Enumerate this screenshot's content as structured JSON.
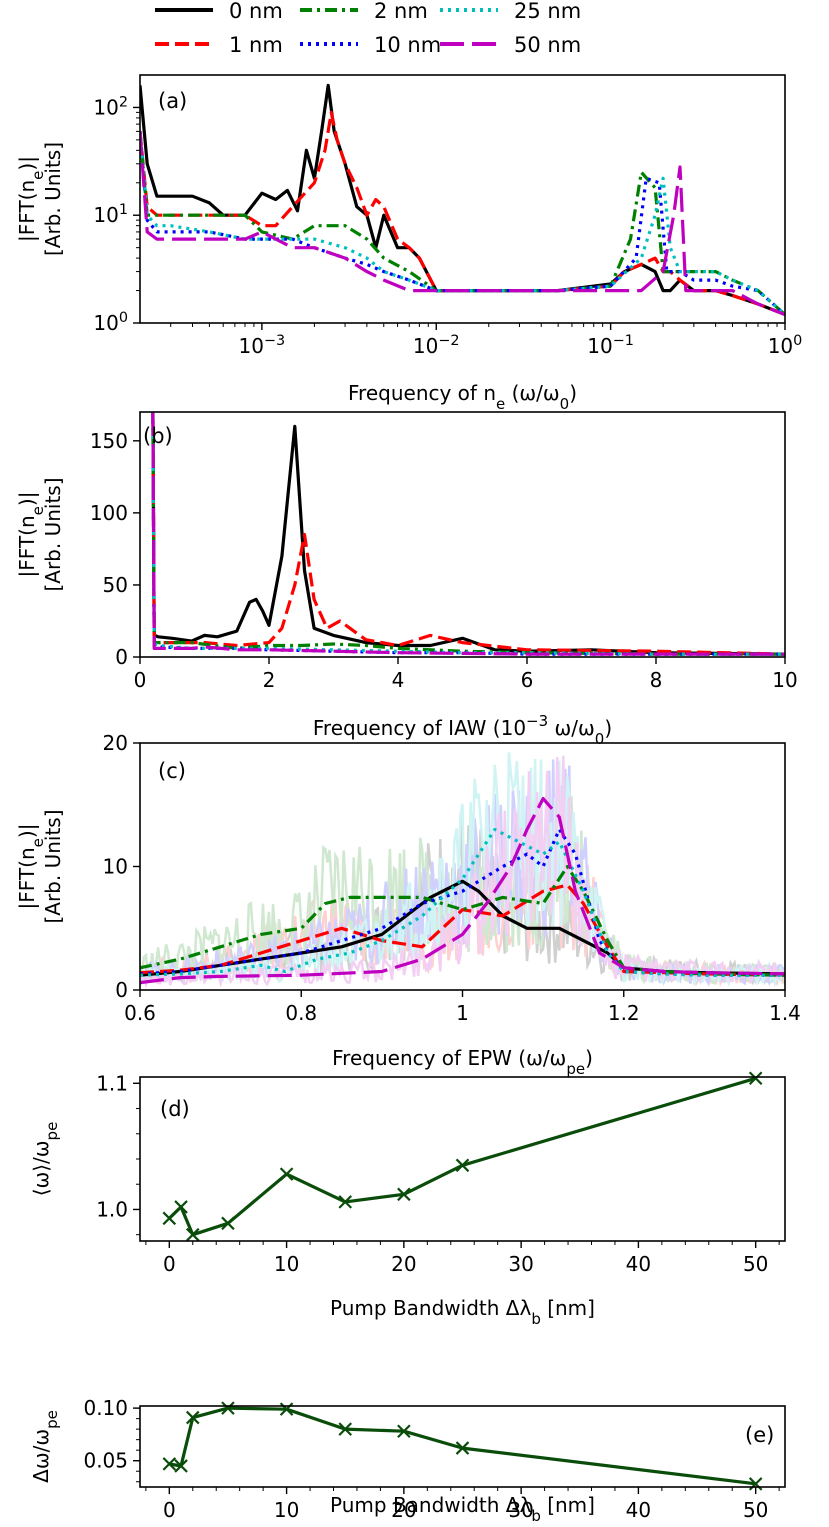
{
  "legend": [
    {
      "name": "0 nm",
      "color": "#000000",
      "dash": "solid"
    },
    {
      "name": "1 nm",
      "color": "#ff0000",
      "dash": "dashed"
    },
    {
      "name": "2 nm",
      "color": "#008000",
      "dash": "dashdot"
    },
    {
      "name": "10 nm",
      "color": "#0000ff",
      "dash": "dotted"
    },
    {
      "name": "25 nm",
      "color": "#00bfbf",
      "dash": "dotted"
    },
    {
      "name": "50 nm",
      "color": "#bf00bf",
      "dash": "longdash"
    }
  ],
  "chart_data": [
    {
      "panel": "(a)",
      "type": "line",
      "xscale": "log",
      "yscale": "log",
      "xlim": [
        0.0002,
        1.0
      ],
      "ylim": [
        1,
        200
      ],
      "xticks": [
        0.001,
        0.01,
        0.1,
        1
      ],
      "xtick_labels": [
        "10^-3",
        "10^-2",
        "10^-1",
        "10^0"
      ],
      "yticks": [
        1,
        10,
        100
      ],
      "ytick_labels": [
        "10^0",
        "10^1",
        "10^2"
      ],
      "xlabel": "Frequency of n_e (ω/ω_0)",
      "ylabel": "|FFT(n_e)| [Arb. Units]",
      "series": [
        {
          "name": "0 nm",
          "x": [
            0.0002,
            0.00022,
            0.00025,
            0.0003,
            0.0004,
            0.0005,
            0.0006,
            0.0008,
            0.001,
            0.0012,
            0.0014,
            0.0016,
            0.0018,
            0.002,
            0.0022,
            0.0024,
            0.0026,
            0.003,
            0.0035,
            0.004,
            0.0045,
            0.005,
            0.006,
            0.007,
            0.008,
            0.01,
            0.02,
            0.05,
            0.1,
            0.12,
            0.15,
            0.18,
            0.2,
            0.22,
            0.25,
            0.3,
            0.4,
            0.5,
            0.7,
            1.0
          ],
          "y": [
            160,
            30,
            15,
            15,
            15,
            13,
            10,
            10,
            16,
            14,
            17,
            11,
            40,
            22,
            60,
            160,
            60,
            30,
            12,
            10,
            5,
            10,
            5,
            5,
            4,
            2,
            2,
            2,
            2.3,
            3,
            3.5,
            3,
            2,
            2,
            2.5,
            2,
            2,
            1.8,
            1.5,
            1.2
          ]
        },
        {
          "name": "1 nm",
          "x": [
            0.0002,
            0.00022,
            0.00025,
            0.0003,
            0.0004,
            0.0005,
            0.0006,
            0.0008,
            0.001,
            0.0012,
            0.0015,
            0.002,
            0.0023,
            0.0025,
            0.0027,
            0.003,
            0.0035,
            0.004,
            0.0045,
            0.005,
            0.006,
            0.007,
            0.008,
            0.01,
            0.02,
            0.05,
            0.1,
            0.12,
            0.15,
            0.18,
            0.2,
            0.22,
            0.25,
            0.3,
            0.4,
            0.5,
            0.7,
            1.0
          ],
          "y": [
            60,
            12,
            10,
            10,
            10,
            10,
            10,
            10,
            8,
            8,
            12,
            20,
            40,
            90,
            50,
            30,
            18,
            10,
            14,
            12,
            6,
            5,
            4,
            2,
            2,
            2,
            2.2,
            3,
            3.5,
            4,
            3,
            3,
            2.5,
            2,
            2,
            1.8,
            1.5,
            1.2
          ]
        },
        {
          "name": "2 nm",
          "x": [
            0.0002,
            0.00022,
            0.00025,
            0.0003,
            0.0005,
            0.0008,
            0.001,
            0.0015,
            0.002,
            0.0025,
            0.003,
            0.004,
            0.005,
            0.007,
            0.01,
            0.02,
            0.05,
            0.1,
            0.13,
            0.15,
            0.18,
            0.2,
            0.25,
            0.3,
            0.4,
            0.5,
            0.7,
            1.0
          ],
          "y": [
            60,
            10,
            10,
            10,
            10,
            10,
            7,
            6,
            8,
            8,
            8,
            6,
            4,
            3,
            2,
            2,
            2,
            2.2,
            6,
            25,
            18,
            3,
            3,
            3,
            3,
            2.5,
            2,
            1.2
          ]
        },
        {
          "name": "10 nm",
          "x": [
            0.0002,
            0.00022,
            0.00025,
            0.0003,
            0.0005,
            0.0008,
            0.001,
            0.0015,
            0.002,
            0.003,
            0.004,
            0.005,
            0.007,
            0.01,
            0.02,
            0.05,
            0.1,
            0.14,
            0.16,
            0.19,
            0.21,
            0.25,
            0.3,
            0.4,
            0.5,
            0.7,
            1.0
          ],
          "y": [
            60,
            9,
            7,
            7,
            7,
            6,
            6,
            6,
            5,
            4,
            3.5,
            3,
            2.5,
            2,
            2,
            2,
            2.2,
            4,
            22,
            20,
            3,
            3,
            2.5,
            2.5,
            2.2,
            2,
            1.2
          ]
        },
        {
          "name": "25 nm",
          "x": [
            0.0002,
            0.00022,
            0.00025,
            0.0003,
            0.0005,
            0.0008,
            0.001,
            0.0015,
            0.002,
            0.003,
            0.004,
            0.005,
            0.007,
            0.01,
            0.02,
            0.05,
            0.1,
            0.15,
            0.18,
            0.2,
            0.22,
            0.25,
            0.3,
            0.4,
            0.5,
            0.7,
            1.0
          ],
          "y": [
            60,
            10,
            8,
            8,
            7,
            6,
            6,
            6,
            6,
            5,
            4,
            3,
            2.5,
            2,
            2,
            2,
            2.2,
            4,
            10,
            22,
            5,
            3,
            3,
            3,
            2.5,
            2,
            1.2
          ]
        },
        {
          "name": "50 nm",
          "x": [
            0.0002,
            0.00022,
            0.00025,
            0.0003,
            0.0004,
            0.0005,
            0.0008,
            0.001,
            0.0015,
            0.002,
            0.003,
            0.004,
            0.005,
            0.007,
            0.01,
            0.02,
            0.05,
            0.1,
            0.15,
            0.2,
            0.23,
            0.25,
            0.27,
            0.3,
            0.4,
            0.5,
            0.7,
            1.0
          ],
          "y": [
            60,
            7,
            6,
            6,
            6,
            6,
            6,
            7,
            5,
            5,
            4,
            3,
            2.5,
            2,
            2,
            2,
            2,
            2,
            2,
            3,
            10,
            28,
            2,
            2,
            2,
            2,
            1.5,
            1.2
          ]
        }
      ]
    },
    {
      "panel": "(b)",
      "type": "line",
      "xlim": [
        0,
        10
      ],
      "ylim": [
        0,
        170
      ],
      "xticks": [
        0,
        2,
        4,
        6,
        8,
        10
      ],
      "yticks": [
        0,
        50,
        100,
        150
      ],
      "xlabel": "Frequency of IAW (10^-3 ω/ω_0)",
      "ylabel": "|FFT(n_e)| [Arb. Units]",
      "series": [
        {
          "name": "0 nm",
          "x": [
            0.2,
            0.22,
            0.28,
            0.5,
            0.8,
            1.0,
            1.2,
            1.5,
            1.7,
            1.8,
            1.9,
            2.0,
            2.2,
            2.4,
            2.55,
            2.7,
            3.0,
            3.5,
            4.0,
            4.5,
            5.0,
            5.5,
            6.0,
            7.0,
            8.0,
            10.0
          ],
          "y": [
            170,
            15,
            14,
            13,
            11,
            15,
            14,
            18,
            38,
            40,
            32,
            22,
            70,
            160,
            60,
            20,
            15,
            10,
            8,
            8,
            13,
            5,
            4,
            5,
            3,
            2
          ]
        },
        {
          "name": "1 nm",
          "x": [
            0.2,
            0.22,
            0.28,
            0.5,
            1.0,
            1.5,
            2.0,
            2.2,
            2.4,
            2.55,
            2.7,
            2.9,
            3.1,
            3.5,
            4.0,
            4.5,
            5.0,
            6.0,
            8.0,
            10.0
          ],
          "y": [
            170,
            10,
            10,
            10,
            10,
            8,
            10,
            20,
            50,
            85,
            40,
            20,
            25,
            12,
            8,
            15,
            10,
            5,
            4,
            2
          ]
        },
        {
          "name": "2 nm",
          "x": [
            0.2,
            0.22,
            0.3,
            0.8,
            1.5,
            2.0,
            2.5,
            3.0,
            3.5,
            4.0,
            5.0,
            6.0,
            8.0,
            10.0
          ],
          "y": [
            170,
            10,
            10,
            10,
            6,
            8,
            8,
            9,
            8,
            6,
            4,
            3,
            2,
            2
          ]
        },
        {
          "name": "10 nm",
          "x": [
            0.2,
            0.22,
            0.3,
            0.8,
            1.5,
            2.0,
            3.0,
            4.0,
            5.0,
            6.0,
            8.0,
            10.0
          ],
          "y": [
            170,
            8,
            7,
            6,
            6,
            5,
            4,
            3,
            3,
            2,
            2,
            2
          ]
        },
        {
          "name": "25 nm",
          "x": [
            0.2,
            0.22,
            0.3,
            0.8,
            1.5,
            2.0,
            3.0,
            4.0,
            5.0,
            6.0,
            8.0,
            10.0
          ],
          "y": [
            170,
            9,
            8,
            6,
            6,
            6,
            5,
            4,
            3,
            3,
            2,
            2
          ]
        },
        {
          "name": "50 nm",
          "x": [
            0.2,
            0.22,
            0.3,
            0.8,
            1.0,
            1.5,
            2.0,
            3.0,
            4.0,
            5.0,
            6.0,
            8.0,
            10.0
          ],
          "y": [
            170,
            6,
            6,
            6,
            7,
            5,
            5,
            4,
            3,
            2.5,
            2,
            2,
            2
          ]
        }
      ]
    },
    {
      "panel": "(c)",
      "type": "line",
      "xlim": [
        0.6,
        1.4
      ],
      "ylim": [
        0,
        20
      ],
      "xticks": [
        0.6,
        0.8,
        1.0,
        1.2,
        1.4
      ],
      "yticks": [
        0,
        10,
        20
      ],
      "xlabel": "Frequency of EPW (ω/ω_pe)",
      "ylabel": "|FFT(n_e)| [Arb. Units]",
      "series": [
        {
          "name": "0 nm",
          "x": [
            0.6,
            0.65,
            0.7,
            0.75,
            0.8,
            0.85,
            0.9,
            0.93,
            0.96,
            1.0,
            1.02,
            1.05,
            1.08,
            1.1,
            1.12,
            1.15,
            1.18,
            1.2,
            1.25,
            1.3,
            1.4
          ],
          "y": [
            1.2,
            1.5,
            2,
            2.5,
            3,
            3.5,
            4.5,
            6,
            7.5,
            8.8,
            8,
            6,
            5,
            5,
            5,
            4,
            3,
            1.8,
            1.5,
            1.4,
            1.3
          ]
        },
        {
          "name": "1 nm",
          "x": [
            0.6,
            0.65,
            0.7,
            0.75,
            0.8,
            0.85,
            0.9,
            0.95,
            1.0,
            1.05,
            1.1,
            1.13,
            1.15,
            1.18,
            1.2,
            1.25,
            1.3,
            1.4
          ],
          "y": [
            1.4,
            1.6,
            2,
            3,
            4,
            5,
            4,
            3.5,
            6.5,
            6,
            8,
            8.5,
            7,
            3.5,
            1.5,
            1.4,
            1.3,
            1.2
          ]
        },
        {
          "name": "2 nm",
          "x": [
            0.6,
            0.65,
            0.7,
            0.75,
            0.8,
            0.83,
            0.86,
            0.9,
            0.95,
            1.0,
            1.05,
            1.1,
            1.13,
            1.15,
            1.18,
            1.2,
            1.25,
            1.3,
            1.4
          ],
          "y": [
            1.8,
            2.5,
            3.5,
            4.5,
            5,
            7,
            7.5,
            7.5,
            7.5,
            6.5,
            7.5,
            7,
            10,
            8,
            4,
            1.8,
            1.5,
            1.3,
            1.2
          ]
        },
        {
          "name": "10 nm",
          "x": [
            0.6,
            0.65,
            0.7,
            0.75,
            0.8,
            0.85,
            0.9,
            0.95,
            1.0,
            1.05,
            1.08,
            1.1,
            1.12,
            1.14,
            1.17,
            1.2,
            1.25,
            1.3,
            1.4
          ],
          "y": [
            1.3,
            1.5,
            2,
            2.5,
            3,
            4,
            5,
            7,
            8,
            10,
            11,
            10,
            13,
            11,
            4,
            1.5,
            1.3,
            1.2,
            1.2
          ]
        },
        {
          "name": "25 nm",
          "x": [
            0.6,
            0.65,
            0.7,
            0.75,
            0.78,
            0.82,
            0.86,
            0.9,
            0.95,
            1.0,
            1.04,
            1.07,
            1.1,
            1.12,
            1.15,
            1.18,
            1.2,
            1.25,
            1.3,
            1.4
          ],
          "y": [
            1.2,
            1.3,
            1.5,
            2,
            1.5,
            2.5,
            3,
            4,
            6,
            9,
            13,
            12,
            11,
            12,
            8,
            3,
            1.5,
            1.3,
            1.2,
            1.2
          ]
        },
        {
          "name": "50 nm",
          "x": [
            0.6,
            0.65,
            0.7,
            0.8,
            0.9,
            0.95,
            1.0,
            1.03,
            1.06,
            1.08,
            1.1,
            1.12,
            1.14,
            1.17,
            1.2,
            1.25,
            1.3,
            1.4
          ],
          "y": [
            0.6,
            1,
            1.1,
            1.2,
            1.5,
            2.5,
            4.5,
            7,
            10,
            13,
            15.5,
            14,
            8,
            3,
            1.8,
            1.5,
            1.4,
            1.3
          ]
        }
      ]
    },
    {
      "panel": "(d)",
      "type": "line",
      "xlim": [
        -2.5,
        52.5
      ],
      "ylim": [
        0.975,
        1.105
      ],
      "xticks": [
        0,
        10,
        20,
        30,
        40,
        50
      ],
      "yticks": [
        1.0,
        1.1
      ],
      "ytick_labels": [
        "1.0",
        "1.1"
      ],
      "xlabel": "Pump Bandwidth Δλ_b [nm]",
      "ylabel": "⟨ω⟩/ω_pe",
      "series": [
        {
          "name": "",
          "color": "#0a4d0a",
          "marker": "x",
          "x": [
            0,
            1,
            2,
            5,
            10,
            15,
            20,
            25,
            50
          ],
          "y": [
            0.993,
            1.002,
            0.98,
            0.989,
            1.028,
            1.006,
            1.012,
            1.035,
            1.104
          ]
        }
      ]
    },
    {
      "panel": "(e)",
      "type": "line",
      "xlim": [
        -2.5,
        52.5
      ],
      "ylim": [
        0.025,
        0.102
      ],
      "xticks": [
        0,
        10,
        20,
        30,
        40,
        50
      ],
      "yticks": [
        0.05,
        0.1
      ],
      "ytick_labels": [
        "0.05",
        "0.10"
      ],
      "xlabel": "Pump Bandwidth Δλ_b [nm]",
      "ylabel": "Δω/ω_pe",
      "series": [
        {
          "name": "",
          "color": "#0a4d0a",
          "marker": "x",
          "x": [
            0,
            1,
            2,
            5,
            10,
            15,
            20,
            25,
            50
          ],
          "y": [
            0.047,
            0.045,
            0.091,
            0.1,
            0.099,
            0.08,
            0.078,
            0.062,
            0.028
          ]
        }
      ]
    }
  ]
}
